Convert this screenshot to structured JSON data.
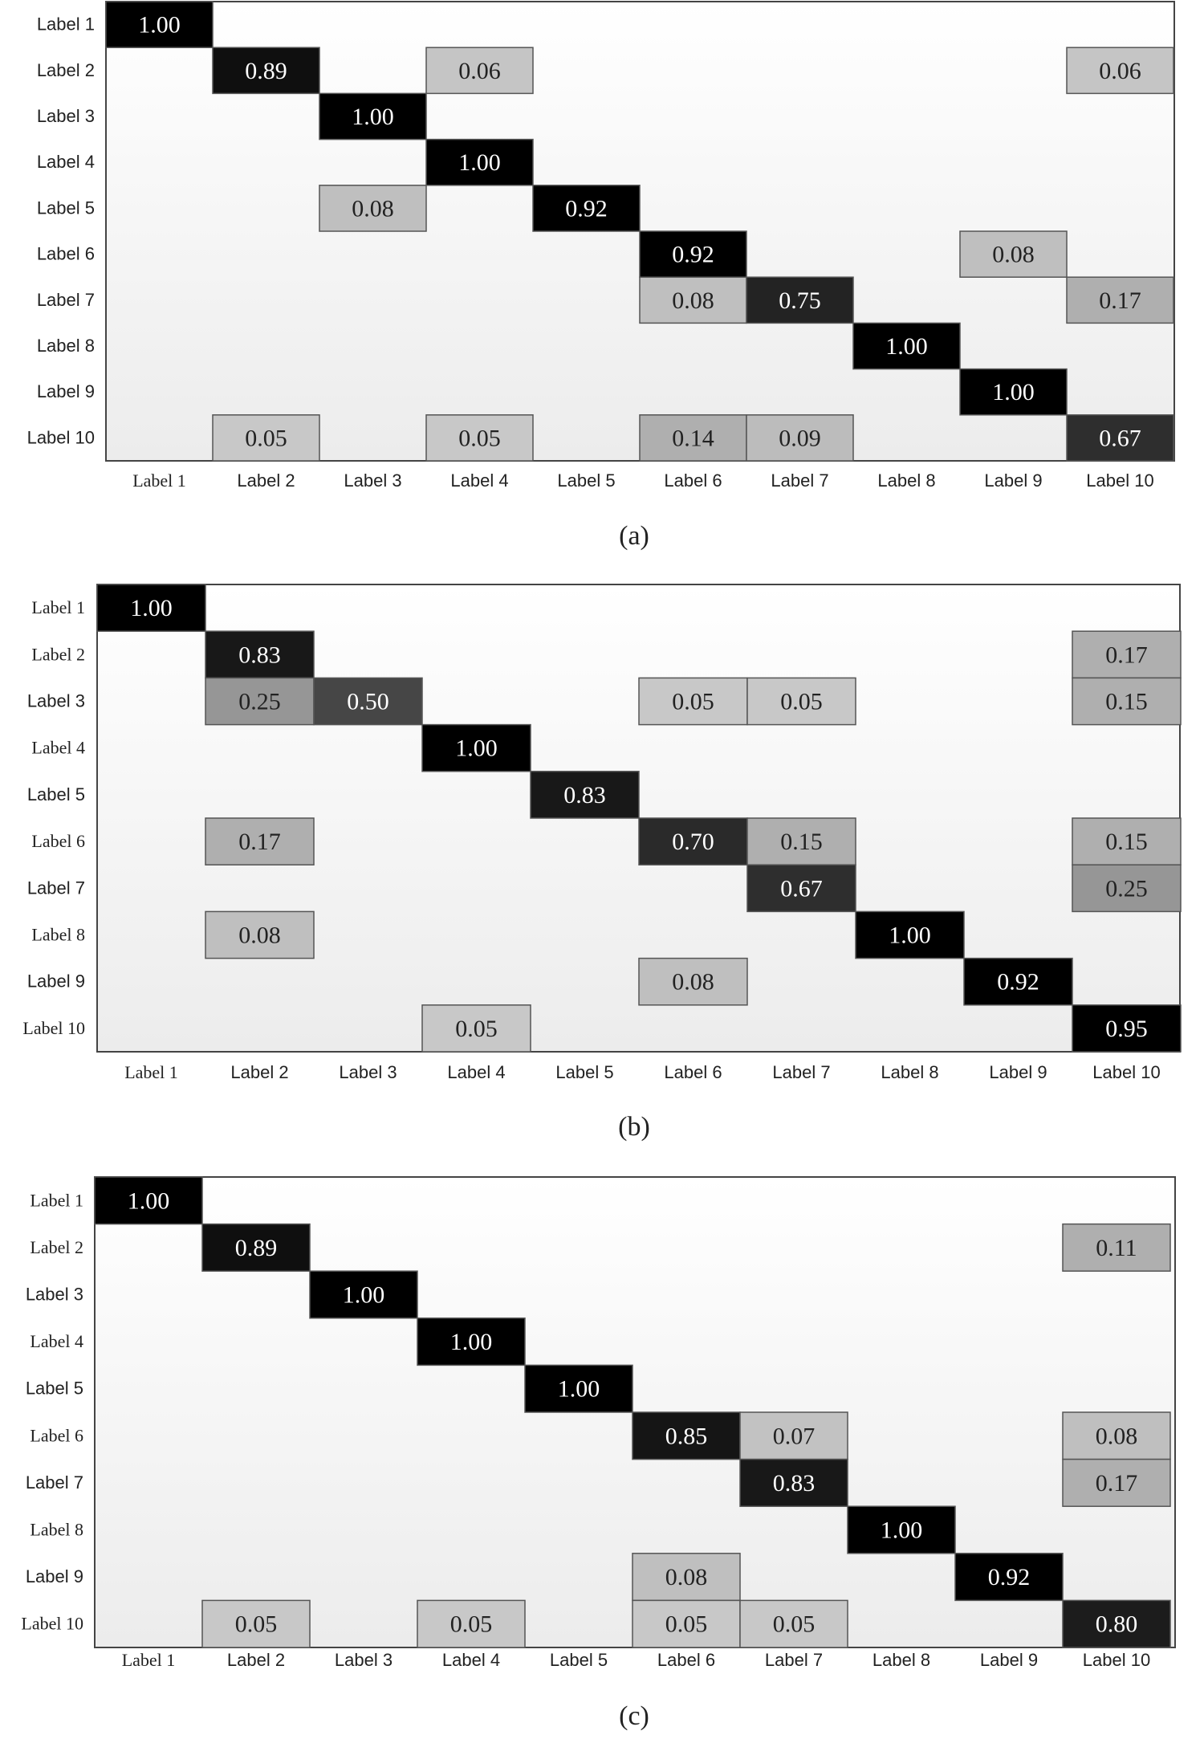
{
  "chart_data": [
    {
      "type": "heatmap",
      "caption": "(a)",
      "row_labels": [
        "Label 1",
        "Label 2",
        "Label 3",
        "Label 4",
        "Label 5",
        "Label 6",
        "Label 7",
        "Label 8",
        "Label 9",
        "Label 10"
      ],
      "col_labels": [
        "Label 1",
        "Label 2",
        "Label 3",
        "Label 4",
        "Label 5",
        "Label 6",
        "Label 7",
        "Label 8",
        "Label 9",
        "Label 10"
      ],
      "cells": [
        {
          "row": 0,
          "col": 0,
          "value": 1.0
        },
        {
          "row": 1,
          "col": 1,
          "value": 0.89
        },
        {
          "row": 1,
          "col": 3,
          "value": 0.06
        },
        {
          "row": 1,
          "col": 9,
          "value": 0.06
        },
        {
          "row": 2,
          "col": 2,
          "value": 1.0
        },
        {
          "row": 3,
          "col": 3,
          "value": 1.0
        },
        {
          "row": 4,
          "col": 2,
          "value": 0.08
        },
        {
          "row": 4,
          "col": 4,
          "value": 0.92
        },
        {
          "row": 5,
          "col": 5,
          "value": 0.92
        },
        {
          "row": 5,
          "col": 8,
          "value": 0.08
        },
        {
          "row": 6,
          "col": 5,
          "value": 0.08
        },
        {
          "row": 6,
          "col": 6,
          "value": 0.75
        },
        {
          "row": 6,
          "col": 9,
          "value": 0.17
        },
        {
          "row": 7,
          "col": 7,
          "value": 1.0
        },
        {
          "row": 8,
          "col": 8,
          "value": 1.0
        },
        {
          "row": 9,
          "col": 1,
          "value": 0.05
        },
        {
          "row": 9,
          "col": 3,
          "value": 0.05
        },
        {
          "row": 9,
          "col": 5,
          "value": 0.14
        },
        {
          "row": 9,
          "col": 6,
          "value": 0.09
        },
        {
          "row": 9,
          "col": 9,
          "value": 0.67
        }
      ]
    },
    {
      "type": "heatmap",
      "caption": "(b)",
      "row_labels": [
        "Label 1",
        "Label 2",
        "Label 3",
        "Label 4",
        "Label 5",
        "Label 6",
        "Label 7",
        "Label 8",
        "Label 9",
        "Label 10"
      ],
      "col_labels": [
        "Label 1",
        "Label 2",
        "Label 3",
        "Label 4",
        "Label 5",
        "Label 6",
        "Label 7",
        "Label 8",
        "Label 9",
        "Label 10"
      ],
      "cells": [
        {
          "row": 0,
          "col": 0,
          "value": 1.0
        },
        {
          "row": 1,
          "col": 1,
          "value": 0.83
        },
        {
          "row": 1,
          "col": 9,
          "value": 0.17
        },
        {
          "row": 2,
          "col": 1,
          "value": 0.25
        },
        {
          "row": 2,
          "col": 2,
          "value": 0.5
        },
        {
          "row": 2,
          "col": 5,
          "value": 0.05
        },
        {
          "row": 2,
          "col": 6,
          "value": 0.05
        },
        {
          "row": 2,
          "col": 9,
          "value": 0.15
        },
        {
          "row": 3,
          "col": 3,
          "value": 1.0
        },
        {
          "row": 4,
          "col": 4,
          "value": 0.83
        },
        {
          "row": 5,
          "col": 1,
          "value": 0.17
        },
        {
          "row": 5,
          "col": 5,
          "value": 0.7
        },
        {
          "row": 5,
          "col": 6,
          "value": 0.15
        },
        {
          "row": 5,
          "col": 9,
          "value": 0.15
        },
        {
          "row": 6,
          "col": 6,
          "value": 0.67
        },
        {
          "row": 6,
          "col": 9,
          "value": 0.25
        },
        {
          "row": 7,
          "col": 1,
          "value": 0.08
        },
        {
          "row": 7,
          "col": 7,
          "value": 1.0
        },
        {
          "row": 8,
          "col": 5,
          "value": 0.08
        },
        {
          "row": 8,
          "col": 8,
          "value": 0.92
        },
        {
          "row": 9,
          "col": 3,
          "value": 0.05
        },
        {
          "row": 9,
          "col": 9,
          "value": 0.95
        }
      ]
    },
    {
      "type": "heatmap",
      "caption": "(c)",
      "row_labels": [
        "Label 1",
        "Label 2",
        "Label 3",
        "Label 4",
        "Label 5",
        "Label 6",
        "Label 7",
        "Label 8",
        "Label 9",
        "Label 10"
      ],
      "col_labels": [
        "Label 1",
        "Label 2",
        "Label 3",
        "Label 4",
        "Label 5",
        "Label 6",
        "Label 7",
        "Label 8",
        "Label 9",
        "Label 10"
      ],
      "cells": [
        {
          "row": 0,
          "col": 0,
          "value": 1.0
        },
        {
          "row": 1,
          "col": 1,
          "value": 0.89
        },
        {
          "row": 1,
          "col": 9,
          "value": 0.11
        },
        {
          "row": 2,
          "col": 2,
          "value": 1.0
        },
        {
          "row": 3,
          "col": 3,
          "value": 1.0
        },
        {
          "row": 4,
          "col": 4,
          "value": 1.0
        },
        {
          "row": 5,
          "col": 5,
          "value": 0.85
        },
        {
          "row": 5,
          "col": 6,
          "value": 0.07
        },
        {
          "row": 5,
          "col": 9,
          "value": 0.08
        },
        {
          "row": 6,
          "col": 6,
          "value": 0.83
        },
        {
          "row": 6,
          "col": 9,
          "value": 0.17
        },
        {
          "row": 7,
          "col": 7,
          "value": 1.0
        },
        {
          "row": 8,
          "col": 5,
          "value": 0.08
        },
        {
          "row": 8,
          "col": 8,
          "value": 0.92
        },
        {
          "row": 9,
          "col": 1,
          "value": 0.05
        },
        {
          "row": 9,
          "col": 3,
          "value": 0.05
        },
        {
          "row": 9,
          "col": 5,
          "value": 0.05
        },
        {
          "row": 9,
          "col": 6,
          "value": 0.05
        },
        {
          "row": 9,
          "col": 9,
          "value": 0.8
        }
      ]
    }
  ]
}
